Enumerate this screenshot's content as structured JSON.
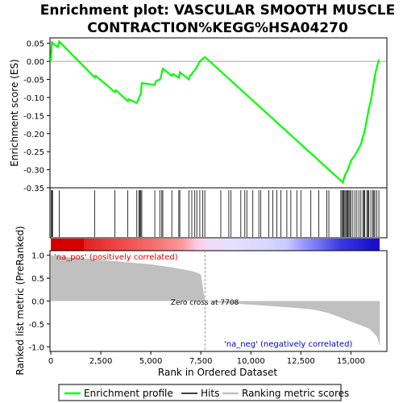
{
  "chart_data": [
    {
      "type": "line",
      "title": "Enrichment plot: VASCULAR SMOOTH MUSCLE\nCONTRACTION%KEGG%HSA04270",
      "ylabel": "Enrichment score (ES)",
      "xlim": [
        0,
        16800
      ],
      "ylim": [
        -0.35,
        0.065
      ],
      "yticks": [
        "0.05",
        "0.00",
        "-0.05",
        "-0.10",
        "-0.15",
        "-0.20",
        "-0.25",
        "-0.30",
        "-0.35"
      ],
      "grid": false,
      "series": [
        {
          "name": "Enrichment profile",
          "color": "#00ff00",
          "x": [
            0,
            60,
            90,
            360,
            420,
            2200,
            2250,
            3200,
            3260,
            3850,
            3900,
            4300,
            4350,
            4450,
            4500,
            4550,
            5200,
            5250,
            5450,
            5500,
            5550,
            5600,
            6050,
            6100,
            6400,
            6450,
            6900,
            6950,
            7050,
            7100,
            7200,
            7300,
            7400,
            7450,
            7550,
            7650,
            7700,
            7750,
            14600,
            14650,
            14700,
            14750,
            14800,
            14850,
            14900,
            14950,
            15000,
            15200,
            15300,
            15500,
            15700,
            15800,
            15900,
            16000,
            16100,
            16200,
            16300,
            16400
          ],
          "values": [
            0.0,
            0.055,
            0.05,
            0.04,
            0.055,
            -0.045,
            -0.04,
            -0.085,
            -0.08,
            -0.11,
            -0.105,
            -0.115,
            -0.11,
            -0.095,
            -0.09,
            -0.06,
            -0.065,
            -0.055,
            -0.05,
            -0.045,
            -0.03,
            -0.02,
            -0.04,
            -0.035,
            -0.045,
            -0.03,
            -0.05,
            -0.04,
            -0.035,
            -0.03,
            -0.025,
            -0.015,
            -0.005,
            0.0,
            0.005,
            0.01,
            0.012,
            0.01,
            -0.335,
            -0.325,
            -0.315,
            -0.31,
            -0.305,
            -0.3,
            -0.29,
            -0.285,
            -0.275,
            -0.26,
            -0.25,
            -0.23,
            -0.19,
            -0.16,
            -0.13,
            -0.11,
            -0.075,
            -0.04,
            -0.015,
            0.005
          ]
        }
      ]
    },
    {
      "type": "scatter",
      "name": "Hits",
      "x": [
        30,
        60,
        90,
        420,
        2200,
        3200,
        3850,
        4300,
        4400,
        4450,
        4500,
        4550,
        5200,
        5450,
        5550,
        5600,
        6050,
        6400,
        6450,
        6900,
        7050,
        7200,
        7300,
        7450,
        7600,
        7700,
        8500,
        8900,
        9000,
        9500,
        9700,
        9800,
        10100,
        10400,
        10500,
        10900,
        11100,
        11300,
        11500,
        11800,
        12000,
        12300,
        12500,
        13000,
        13400,
        13800,
        13900,
        14500,
        14550,
        14600,
        14650,
        14700,
        14750,
        14800,
        14850,
        14900,
        14950,
        15000,
        15100,
        15200,
        15300,
        15400,
        15500,
        15600,
        15650,
        15700,
        15800,
        15850,
        15900,
        16000,
        16100,
        16150,
        16200,
        16300,
        16400
      ]
    },
    {
      "type": "area",
      "name": "Ranking metric scores",
      "xlabel": "Rank in Ordered Dataset",
      "ylabel": "Ranked list metric (PreRanked)",
      "xlim": [
        0,
        16800
      ],
      "ylim": [
        -1.1,
        1.1
      ],
      "xticks": [
        "0",
        "2,500",
        "5,000",
        "7,500",
        "10,000",
        "12,500",
        "15,000"
      ],
      "yticks": [
        "1.0",
        "0.5",
        "0.0",
        "-0.5",
        "-1.0"
      ],
      "color": "#c0c0c0",
      "x": [
        0,
        300,
        1000,
        2000,
        3000,
        4000,
        5000,
        6000,
        6500,
        7000,
        7300,
        7500,
        7708,
        8500,
        10000,
        11000,
        12000,
        13000,
        13500,
        14000,
        14500,
        15000,
        15500,
        15900,
        16100,
        16300,
        16400,
        16450
      ],
      "values": [
        1.0,
        0.98,
        0.95,
        0.92,
        0.88,
        0.84,
        0.8,
        0.74,
        0.7,
        0.66,
        0.62,
        0.58,
        0.0,
        -0.04,
        -0.08,
        -0.11,
        -0.14,
        -0.18,
        -0.22,
        -0.28,
        -0.36,
        -0.45,
        -0.53,
        -0.6,
        -0.68,
        -0.78,
        -0.9,
        -1.0
      ]
    }
  ],
  "annotations": {
    "pos_label": "'na_pos' (positively correlated)",
    "neg_label": "'na_neg' (negatively correlated)",
    "zero_cross": "Zero cross at 7708"
  },
  "legend": {
    "items": [
      {
        "label": "Enrichment profile",
        "color": "#00ff00"
      },
      {
        "label": "Hits",
        "color": "#000000"
      },
      {
        "label": "Ranking metric scores",
        "color": "#c0c0c0"
      }
    ]
  }
}
